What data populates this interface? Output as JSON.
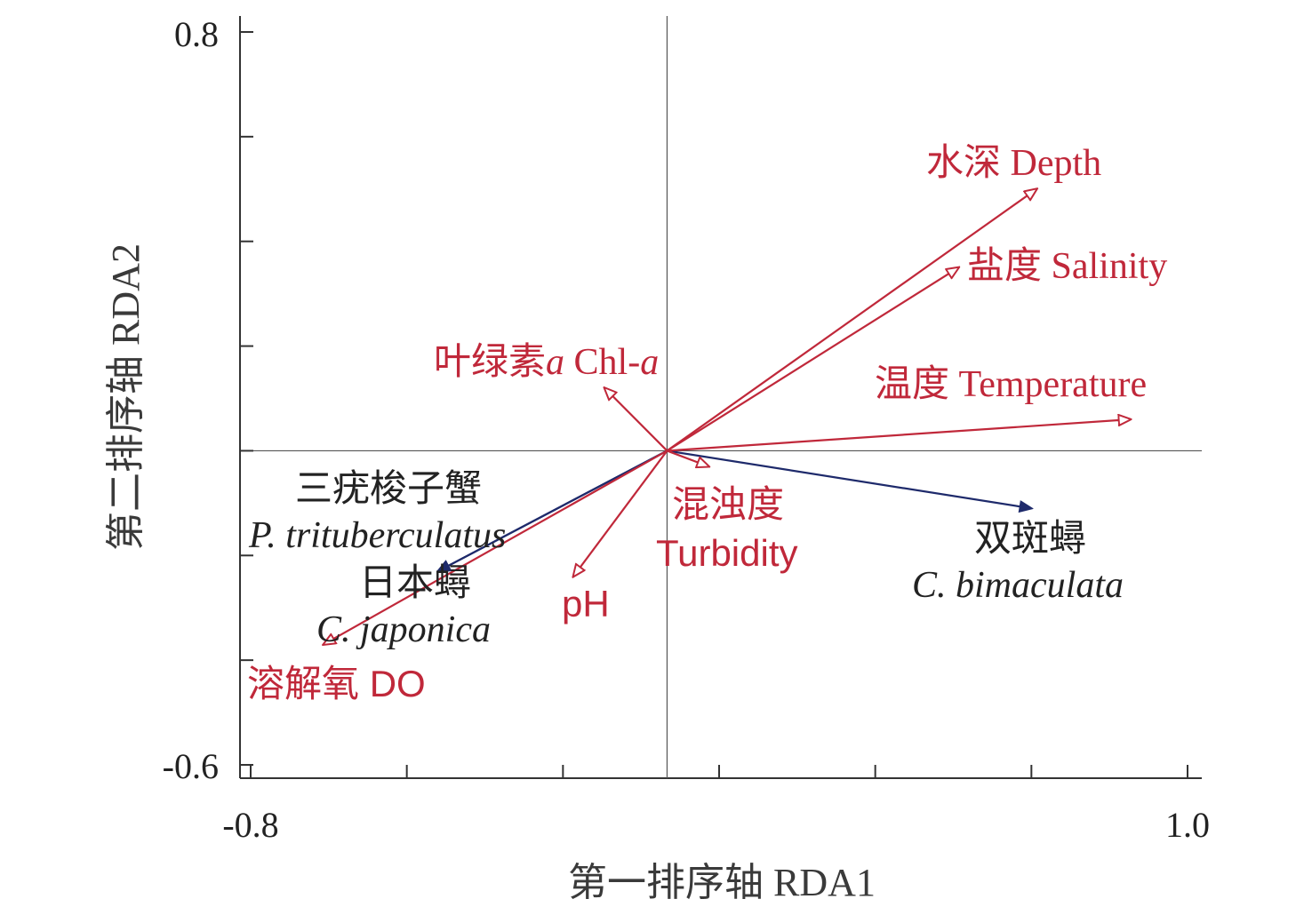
{
  "chart_data": {
    "type": "biplot",
    "title": "",
    "xlabel": "第一排序轴 RDA1",
    "ylabel": "第二排序轴 RDA2",
    "xlim": [
      -0.8,
      1.0
    ],
    "ylim": [
      -0.6,
      0.8
    ],
    "x_tick_labels": [
      "-0.8",
      "1.0"
    ],
    "y_tick_labels": [
      "0.8",
      "-0.6"
    ],
    "x_ticks": [
      -0.8,
      -0.5,
      -0.2,
      0.1,
      0.4,
      0.7,
      1.0
    ],
    "y_ticks": [
      0.8,
      0.6,
      0.4,
      0.2,
      0.0,
      -0.2,
      -0.4,
      -0.6
    ],
    "origin_lines": true,
    "env_color": "#c0283a",
    "species_color": "#1e2a6b",
    "environmental_vectors": [
      {
        "name_cn": "水深",
        "name_en": "Depth",
        "x": 0.71,
        "y": 0.5
      },
      {
        "name_cn": "盐度",
        "name_en": "Salinity",
        "x": 0.56,
        "y": 0.35
      },
      {
        "name_cn": "温度",
        "name_en": "Temperature",
        "x": 0.89,
        "y": 0.06
      },
      {
        "name_cn": "叶绿素",
        "name_en_prefix": "Chl-",
        "italic_part": "a",
        "x": -0.12,
        "y": 0.12
      },
      {
        "name_cn": "混浊度",
        "name_en": "Turbidity",
        "x": 0.08,
        "y": -0.03
      },
      {
        "name_en": "pH",
        "x": -0.18,
        "y": -0.24
      },
      {
        "name_cn": "溶解氧",
        "name_en": "DO",
        "x": -0.66,
        "y": -0.37
      }
    ],
    "species_vectors": [
      {
        "name_cn": "三疣梭子蟹",
        "name_latin": "P. trituberculatus",
        "x": -0.44,
        "y": -0.23
      },
      {
        "name_cn": "日本蟳",
        "name_latin": "C. japonica",
        "x": -0.44,
        "y": -0.23
      },
      {
        "name_cn": "双斑蟳",
        "name_latin": "C. bimaculata",
        "x": 0.7,
        "y": -0.11
      }
    ]
  }
}
